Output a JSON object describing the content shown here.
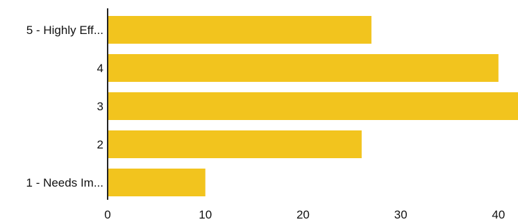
{
  "chart_data": {
    "type": "bar",
    "orientation": "horizontal",
    "categories": [
      "5 - Highly Eff...",
      "4",
      "3",
      "2",
      "1 - Needs Im..."
    ],
    "values": [
      27,
      40,
      42,
      26,
      10
    ],
    "xlim": [
      0,
      42
    ],
    "xticks": [
      0,
      10,
      20,
      30,
      40
    ],
    "xtick_labels": [
      "0",
      "10",
      "20",
      "30",
      "40"
    ],
    "title": "",
    "xlabel": "",
    "ylabel": "",
    "grid": false,
    "legend": "none",
    "bar_color": "#F2C41E",
    "axis_color": "#222222"
  }
}
